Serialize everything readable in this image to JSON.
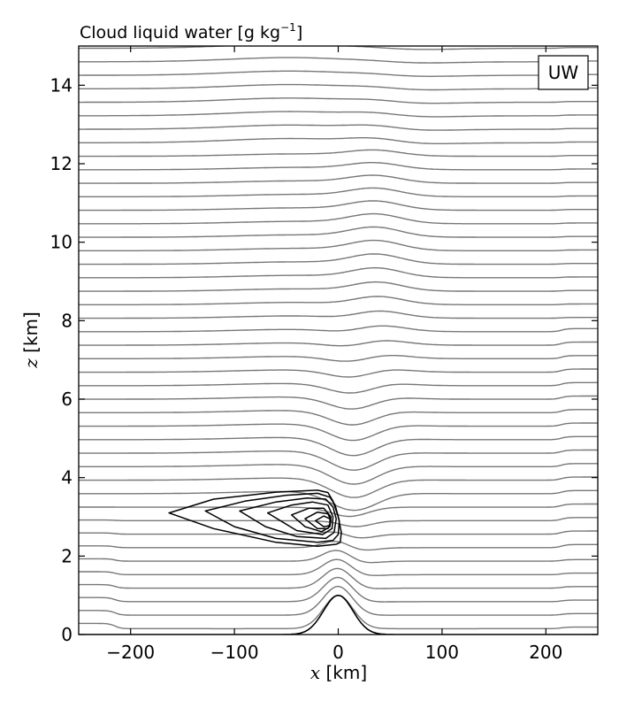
{
  "chart_data": {
    "type": "contour",
    "title": "Cloud liquid water [g kg",
    "title_exponent": "−1",
    "title_close": "]",
    "panel_label": "UW",
    "xlabel_var": "x",
    "xlabel_unit": " [km]",
    "ylabel_var": "z",
    "ylabel_unit": " [km]",
    "xlim": [
      -250,
      250
    ],
    "ylim": [
      0,
      15
    ],
    "xticks": [
      -200,
      -100,
      0,
      100,
      200
    ],
    "xtick_labels": [
      "−200",
      "−100",
      "0",
      "100",
      "200"
    ],
    "yticks": [
      0,
      2,
      4,
      6,
      8,
      10,
      12,
      14
    ],
    "yticks_labels": [
      "0",
      "2",
      "4",
      "6",
      "8",
      "10",
      "12",
      "14"
    ],
    "grid": false,
    "colors": {
      "streamlines": "#777777",
      "cloud_contours": "#000000",
      "terrain": "#000000"
    },
    "terrain": {
      "peak_height_km": 1.0,
      "peak_x_km": 0,
      "half_width_km": 20
    },
    "streamlines": {
      "count": 44,
      "base_height_min_km": 0.15,
      "base_height_max_km": 14.95,
      "spacing_km": 0.344
    },
    "cloud_contours": [
      {
        "x": [
          -163,
          -120,
          -60,
          -20,
          -10,
          -5,
          0,
          3,
          2,
          -2,
          -20,
          -60,
          -120,
          -163
        ],
        "z": [
          3.1,
          3.45,
          3.63,
          3.68,
          3.62,
          3.4,
          3.0,
          2.6,
          2.35,
          2.3,
          2.25,
          2.35,
          2.7,
          3.1
        ]
      },
      {
        "x": [
          -128,
          -90,
          -50,
          -20,
          -8,
          -3,
          1,
          0,
          -5,
          -20,
          -60,
          -100,
          -128
        ],
        "z": [
          3.15,
          3.4,
          3.55,
          3.6,
          3.5,
          3.3,
          2.9,
          2.55,
          2.4,
          2.35,
          2.45,
          2.75,
          3.15
        ]
      },
      {
        "x": [
          -95,
          -60,
          -30,
          -12,
          -5,
          -2,
          -4,
          -12,
          -40,
          -70,
          -95
        ],
        "z": [
          3.15,
          3.38,
          3.48,
          3.45,
          3.25,
          2.95,
          2.6,
          2.45,
          2.5,
          2.75,
          3.15
        ]
      },
      {
        "x": [
          -68,
          -45,
          -25,
          -10,
          -5,
          -6,
          -15,
          -40,
          -68
        ],
        "z": [
          3.1,
          3.3,
          3.38,
          3.3,
          3.0,
          2.7,
          2.55,
          2.65,
          3.1
        ]
      },
      {
        "x": [
          -45,
          -28,
          -14,
          -7,
          -8,
          -16,
          -32,
          -45
        ],
        "z": [
          3.05,
          3.22,
          3.22,
          3.0,
          2.75,
          2.62,
          2.75,
          3.05
        ]
      },
      {
        "x": [
          -32,
          -20,
          -10,
          -7,
          -10,
          -20,
          -32
        ],
        "z": [
          2.95,
          3.12,
          3.08,
          2.9,
          2.7,
          2.7,
          2.95
        ]
      },
      {
        "x": [
          -22,
          -14,
          -8,
          -8,
          -14,
          -22
        ],
        "z": [
          2.9,
          3.02,
          2.95,
          2.78,
          2.75,
          2.9
        ]
      }
    ]
  }
}
